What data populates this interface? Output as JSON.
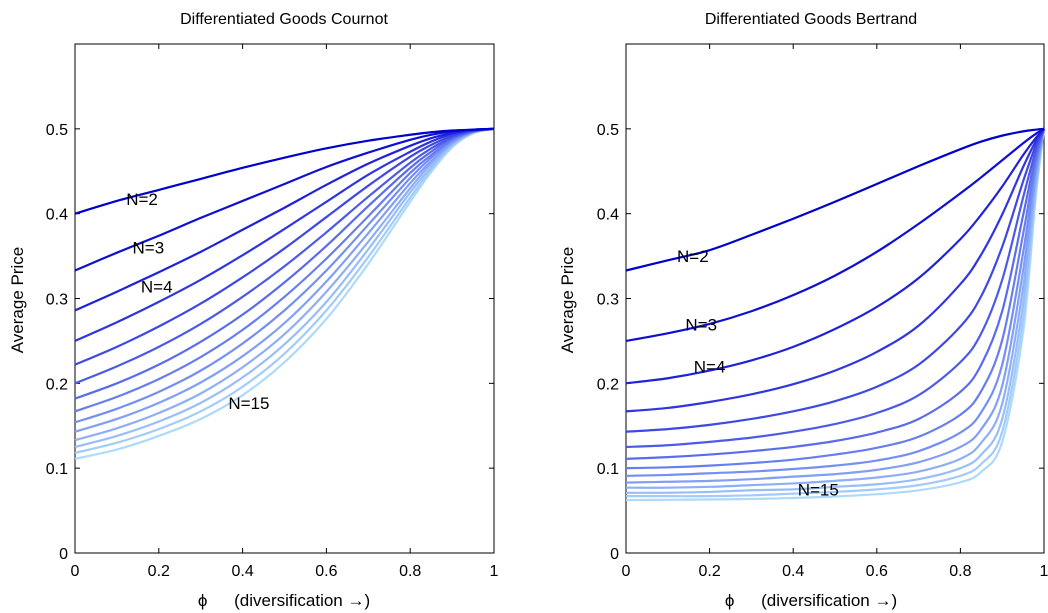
{
  "chart_data": [
    {
      "type": "line",
      "title": "Differentiated Goods Cournot",
      "xlabel_symbol": "ϕ",
      "xlabel": "(diversification →)",
      "ylabel": "Average Price",
      "xlim": [
        0,
        1
      ],
      "ylim": [
        0,
        0.6
      ],
      "xticks": [
        "0",
        "0.2",
        "0.4",
        "0.6",
        "0.8",
        "1"
      ],
      "yticks": [
        "0",
        "0.1",
        "0.2",
        "0.3",
        "0.4",
        "0.5"
      ],
      "grid": false,
      "x": [
        0,
        0.1,
        0.2,
        0.3,
        0.4,
        0.5,
        0.6,
        0.7,
        0.8,
        0.85,
        0.9,
        0.95,
        1.0
      ],
      "series": [
        {
          "n": 2,
          "color": "#0000cc",
          "values": [
            0.4,
            0.415,
            0.428,
            0.441,
            0.454,
            0.466,
            0.477,
            0.486,
            0.493,
            0.496,
            0.498,
            0.499,
            0.5
          ]
        },
        {
          "n": 3,
          "color": "#0f0fd3",
          "values": [
            0.333,
            0.354,
            0.374,
            0.395,
            0.415,
            0.435,
            0.455,
            0.472,
            0.487,
            0.493,
            0.497,
            0.499,
            0.5
          ]
        },
        {
          "n": 4,
          "color": "#1f22d9",
          "values": [
            0.286,
            0.308,
            0.331,
            0.355,
            0.381,
            0.407,
            0.434,
            0.459,
            0.48,
            0.489,
            0.495,
            0.499,
            0.5
          ]
        },
        {
          "n": 5,
          "color": "#2f35df",
          "values": [
            0.25,
            0.272,
            0.296,
            0.322,
            0.351,
            0.382,
            0.414,
            0.446,
            0.473,
            0.485,
            0.494,
            0.498,
            0.5
          ]
        },
        {
          "n": 6,
          "color": "#3e48e4",
          "values": [
            0.222,
            0.243,
            0.267,
            0.294,
            0.325,
            0.359,
            0.396,
            0.433,
            0.467,
            0.481,
            0.492,
            0.498,
            0.5
          ]
        },
        {
          "n": 7,
          "color": "#4c5ae8",
          "values": [
            0.2,
            0.22,
            0.243,
            0.27,
            0.302,
            0.338,
            0.378,
            0.42,
            0.46,
            0.477,
            0.49,
            0.498,
            0.5
          ]
        },
        {
          "n": 8,
          "color": "#5a6cec",
          "values": [
            0.182,
            0.2,
            0.222,
            0.249,
            0.281,
            0.319,
            0.362,
            0.409,
            0.454,
            0.473,
            0.489,
            0.497,
            0.5
          ]
        },
        {
          "n": 9,
          "color": "#677df0",
          "values": [
            0.167,
            0.184,
            0.205,
            0.231,
            0.263,
            0.302,
            0.347,
            0.397,
            0.448,
            0.469,
            0.487,
            0.497,
            0.5
          ]
        },
        {
          "n": 10,
          "color": "#748ef3",
          "values": [
            0.154,
            0.17,
            0.19,
            0.215,
            0.247,
            0.286,
            0.333,
            0.387,
            0.442,
            0.466,
            0.486,
            0.497,
            0.5
          ]
        },
        {
          "n": 11,
          "color": "#819ff5",
          "values": [
            0.143,
            0.158,
            0.177,
            0.201,
            0.232,
            0.271,
            0.32,
            0.377,
            0.436,
            0.462,
            0.484,
            0.496,
            0.5
          ]
        },
        {
          "n": 12,
          "color": "#8dafF7",
          "values": [
            0.133,
            0.147,
            0.165,
            0.188,
            0.219,
            0.258,
            0.308,
            0.367,
            0.43,
            0.459,
            0.483,
            0.496,
            0.5
          ]
        },
        {
          "n": 13,
          "color": "#98bef9",
          "values": [
            0.125,
            0.138,
            0.155,
            0.177,
            0.207,
            0.246,
            0.296,
            0.358,
            0.425,
            0.455,
            0.481,
            0.496,
            0.5
          ]
        },
        {
          "n": 14,
          "color": "#a3cbfa",
          "values": [
            0.118,
            0.13,
            0.146,
            0.167,
            0.196,
            0.235,
            0.286,
            0.349,
            0.419,
            0.452,
            0.48,
            0.495,
            0.5
          ]
        },
        {
          "n": 15,
          "color": "#addafb",
          "values": [
            0.111,
            0.122,
            0.138,
            0.158,
            0.186,
            0.225,
            0.276,
            0.341,
            0.414,
            0.449,
            0.478,
            0.495,
            0.5
          ]
        }
      ],
      "annotations": [
        {
          "text": "N=2",
          "x": 0.16,
          "y": 0.41
        },
        {
          "text": "N=3",
          "x": 0.175,
          "y": 0.353
        },
        {
          "text": "N=4",
          "x": 0.195,
          "y": 0.307
        },
        {
          "text": "N=15",
          "x": 0.415,
          "y": 0.17
        }
      ]
    },
    {
      "type": "line",
      "title": "Differentiated Goods Bertrand",
      "xlabel_symbol": "ϕ",
      "xlabel": "(diversification →)",
      "ylabel": "Average Price",
      "xlim": [
        0,
        1
      ],
      "ylim": [
        0,
        0.6
      ],
      "xticks": [
        "0",
        "0.2",
        "0.4",
        "0.6",
        "0.8",
        "1"
      ],
      "yticks": [
        "0",
        "0.1",
        "0.2",
        "0.3",
        "0.4",
        "0.5"
      ],
      "grid": false,
      "x": [
        0,
        0.1,
        0.2,
        0.3,
        0.4,
        0.5,
        0.6,
        0.7,
        0.8,
        0.85,
        0.9,
        0.95,
        0.98,
        1.0
      ],
      "series": [
        {
          "n": 2,
          "color": "#0000cc",
          "values": [
            0.333,
            0.345,
            0.357,
            0.375,
            0.394,
            0.414,
            0.435,
            0.456,
            0.476,
            0.485,
            0.492,
            0.497,
            0.499,
            0.5
          ]
        },
        {
          "n": 3,
          "color": "#0f0fd3",
          "values": [
            0.25,
            0.259,
            0.27,
            0.285,
            0.304,
            0.327,
            0.355,
            0.388,
            0.424,
            0.443,
            0.463,
            0.483,
            0.494,
            0.5
          ]
        },
        {
          "n": 4,
          "color": "#1f22d9",
          "values": [
            0.2,
            0.206,
            0.215,
            0.227,
            0.243,
            0.264,
            0.29,
            0.324,
            0.37,
            0.399,
            0.432,
            0.469,
            0.489,
            0.5
          ]
        },
        {
          "n": 5,
          "color": "#2f35df",
          "values": [
            0.167,
            0.171,
            0.178,
            0.187,
            0.199,
            0.215,
            0.237,
            0.268,
            0.317,
            0.352,
            0.399,
            0.455,
            0.485,
            0.5
          ]
        },
        {
          "n": 6,
          "color": "#3e48e4",
          "values": [
            0.143,
            0.146,
            0.151,
            0.158,
            0.167,
            0.179,
            0.196,
            0.222,
            0.267,
            0.303,
            0.361,
            0.438,
            0.48,
            0.5
          ]
        },
        {
          "n": 7,
          "color": "#4c5ae8",
          "values": [
            0.125,
            0.127,
            0.131,
            0.136,
            0.143,
            0.152,
            0.165,
            0.186,
            0.225,
            0.259,
            0.322,
            0.419,
            0.474,
            0.5
          ]
        },
        {
          "n": 8,
          "color": "#5a6cec",
          "values": [
            0.111,
            0.113,
            0.116,
            0.12,
            0.125,
            0.132,
            0.142,
            0.158,
            0.19,
            0.222,
            0.285,
            0.398,
            0.468,
            0.5
          ]
        },
        {
          "n": 9,
          "color": "#677df0",
          "values": [
            0.1,
            0.101,
            0.103,
            0.106,
            0.11,
            0.116,
            0.124,
            0.137,
            0.163,
            0.191,
            0.251,
            0.376,
            0.461,
            0.5
          ]
        },
        {
          "n": 10,
          "color": "#748ef3",
          "values": [
            0.091,
            0.092,
            0.094,
            0.096,
            0.099,
            0.103,
            0.109,
            0.12,
            0.142,
            0.166,
            0.222,
            0.354,
            0.454,
            0.5
          ]
        },
        {
          "n": 11,
          "color": "#819ff5",
          "values": [
            0.083,
            0.084,
            0.085,
            0.087,
            0.09,
            0.093,
            0.098,
            0.107,
            0.125,
            0.146,
            0.197,
            0.333,
            0.447,
            0.5
          ]
        },
        {
          "n": 12,
          "color": "#8dafF7",
          "values": [
            0.077,
            0.077,
            0.078,
            0.08,
            0.082,
            0.085,
            0.089,
            0.096,
            0.111,
            0.13,
            0.176,
            0.313,
            0.44,
            0.5
          ]
        },
        {
          "n": 13,
          "color": "#98bef9",
          "values": [
            0.071,
            0.071,
            0.072,
            0.074,
            0.075,
            0.078,
            0.081,
            0.087,
            0.1,
            0.116,
            0.158,
            0.294,
            0.432,
            0.5
          ]
        },
        {
          "n": 14,
          "color": "#a3cbfa",
          "values": [
            0.067,
            0.067,
            0.067,
            0.068,
            0.07,
            0.072,
            0.075,
            0.08,
            0.091,
            0.105,
            0.143,
            0.276,
            0.425,
            0.5
          ]
        },
        {
          "n": 15,
          "color": "#addafb",
          "values": [
            0.0625,
            0.0627,
            0.0631,
            0.0637,
            0.0648,
            0.0666,
            0.0693,
            0.0739,
            0.0834,
            0.0957,
            0.131,
            0.26,
            0.418,
            0.5
          ]
        }
      ],
      "annotations": [
        {
          "text": "N=2",
          "x": 0.16,
          "y": 0.343
        },
        {
          "text": "N=3",
          "x": 0.18,
          "y": 0.262
        },
        {
          "text": "N=4",
          "x": 0.2,
          "y": 0.213
        },
        {
          "text": "N=15",
          "x": 0.46,
          "y": 0.068
        }
      ]
    }
  ]
}
